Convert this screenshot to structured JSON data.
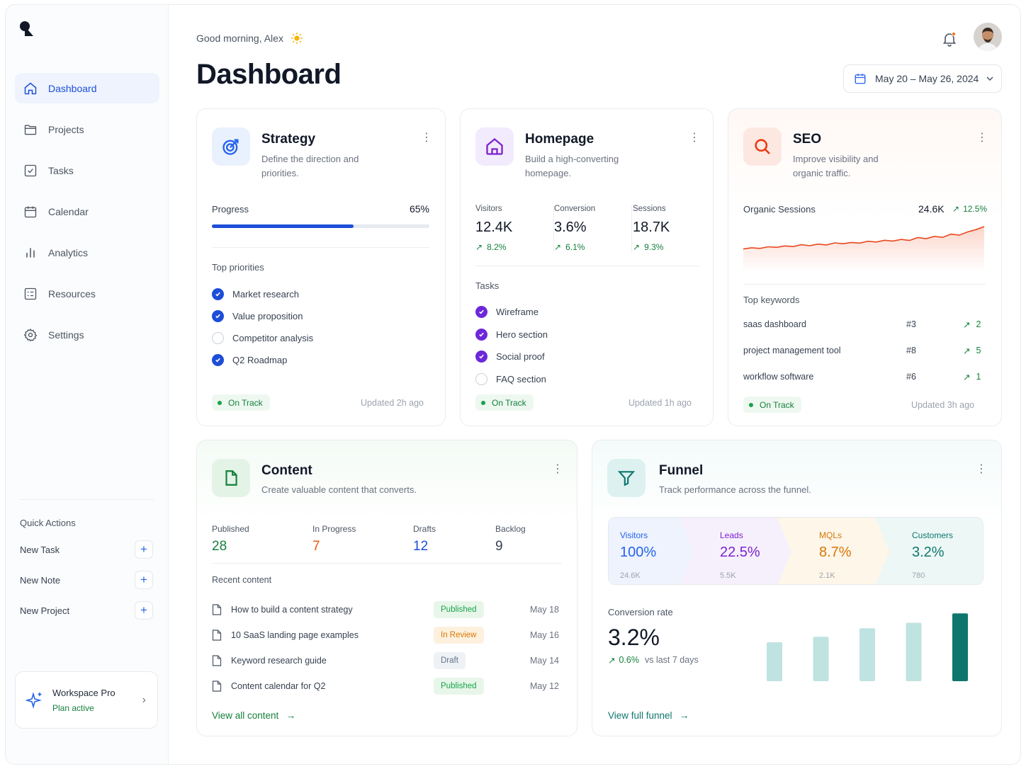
{
  "sidebar": {
    "nav": [
      {
        "label": "Dashboard",
        "icon": "home-icon"
      },
      {
        "label": "Projects",
        "icon": "folder-icon"
      },
      {
        "label": "Tasks",
        "icon": "checkbox-icon"
      },
      {
        "label": "Calendar",
        "icon": "calendar-icon"
      },
      {
        "label": "Analytics",
        "icon": "bar-chart-icon"
      },
      {
        "label": "Resources",
        "icon": "list-icon"
      },
      {
        "label": "Settings",
        "icon": "gear-icon"
      }
    ],
    "quick_actions_title": "Quick Actions",
    "quick_actions": [
      "New Task",
      "New Note",
      "New Project"
    ],
    "plan": {
      "name": "Workspace Pro",
      "status": "Plan active"
    }
  },
  "header": {
    "greeting": "Good morning, Alex",
    "title": "Dashboard",
    "date_range": "May 20 – May 26, 2024"
  },
  "strategy": {
    "title": "Strategy",
    "subtitle_1": "Define the direction and",
    "subtitle_2": "priorities.",
    "progress_label": "Progress",
    "progress_text": "65%",
    "progress": 0.65,
    "priorities_title": "Top priorities",
    "priorities": [
      {
        "label": "Market research",
        "done": true
      },
      {
        "label": "Value proposition",
        "done": true
      },
      {
        "label": "Competitor analysis",
        "done": false
      },
      {
        "label": "Q2 Roadmap",
        "done": true
      }
    ],
    "status": "On Track",
    "updated": "Updated 2h ago"
  },
  "homepage": {
    "title": "Homepage",
    "subtitle_1": "Build a high-converting",
    "subtitle_2": "homepage.",
    "stats": [
      {
        "label": "Visitors",
        "value": "12.4K",
        "delta": "8.2%"
      },
      {
        "label": "Conversion",
        "value": "3.6%",
        "delta": "6.1%"
      },
      {
        "label": "Sessions",
        "value": "18.7K",
        "delta": "9.3%"
      }
    ],
    "tasks_title": "Tasks",
    "tasks": [
      {
        "label": "Wireframe",
        "done": true
      },
      {
        "label": "Hero section",
        "done": true
      },
      {
        "label": "Social proof",
        "done": true
      },
      {
        "label": "FAQ section",
        "done": false
      }
    ],
    "status": "On Track",
    "updated": "Updated 1h ago"
  },
  "seo": {
    "title": "SEO",
    "subtitle_1": "Improve visibility and",
    "subtitle_2": "organic traffic.",
    "sessions_label": "Organic Sessions",
    "sessions_value": "24.6K",
    "sessions_delta": "12.5%",
    "keywords_title": "Top keywords",
    "keywords": [
      {
        "term": "saas dashboard",
        "rank": "#3",
        "change": "2"
      },
      {
        "term": "project management tool",
        "rank": "#8",
        "change": "5"
      },
      {
        "term": "workflow software",
        "rank": "#6",
        "change": "1"
      }
    ],
    "status": "On Track",
    "updated": "Updated 3h ago"
  },
  "content": {
    "title": "Content",
    "subtitle": "Create valuable content that converts.",
    "stats": [
      {
        "label": "Published",
        "value": "28",
        "color": "#15803d"
      },
      {
        "label": "In Progress",
        "value": "7",
        "color": "#ea580c"
      },
      {
        "label": "Drafts",
        "value": "12",
        "color": "#1d4ed8"
      },
      {
        "label": "Backlog",
        "value": "9",
        "color": "#374151"
      }
    ],
    "recent_title": "Recent content",
    "recent": [
      {
        "title": "How to build a content strategy",
        "status": "Published",
        "date": "May 18"
      },
      {
        "title": "10 SaaS landing page examples",
        "status": "In Review",
        "date": "May 16"
      },
      {
        "title": "Keyword research guide",
        "status": "Draft",
        "date": "May 14"
      },
      {
        "title": "Content calendar for Q2",
        "status": "Published",
        "date": "May 12"
      }
    ],
    "link": "View all content"
  },
  "funnel": {
    "title": "Funnel",
    "subtitle": "Track performance across the funnel.",
    "stages": [
      {
        "label": "Visitors",
        "value": "100%",
        "count": "24.6K",
        "color": "#2563eb"
      },
      {
        "label": "Leads",
        "value": "22.5%",
        "count": "5.5K",
        "color": "#7e22ce"
      },
      {
        "label": "MQLs",
        "value": "8.7%",
        "count": "2.1K",
        "color": "#d97706"
      },
      {
        "label": "Customers",
        "value": "3.2%",
        "count": "780",
        "color": "#0f766e"
      }
    ],
    "conversion_label": "Conversion rate",
    "conversion_value": "3.2%",
    "conversion_delta": "0.6%",
    "conversion_compare": "vs last 7 days",
    "link": "View full funnel"
  },
  "chart_data": [
    {
      "type": "line",
      "series": [
        {
          "values": [
            5,
            5.6,
            5.3,
            6.1,
            5.8,
            6.5,
            6.2,
            7.1,
            6.6,
            7.4,
            7.0,
            8.0,
            7.6,
            8.2,
            7.9,
            8.8,
            8.4,
            9.3,
            8.9,
            9.7,
            9.2,
            10.6,
            10.1,
            11.2,
            10.7,
            12.3,
            11.8,
            13.4,
            14.5,
            16.0
          ]
        }
      ],
      "xlabel": "",
      "ylabel": ""
    },
    {
      "type": "bar",
      "series": [
        {
          "values": [
            50,
            57,
            68,
            75,
            87
          ]
        }
      ],
      "xlabel": "",
      "ylabel": ""
    }
  ]
}
